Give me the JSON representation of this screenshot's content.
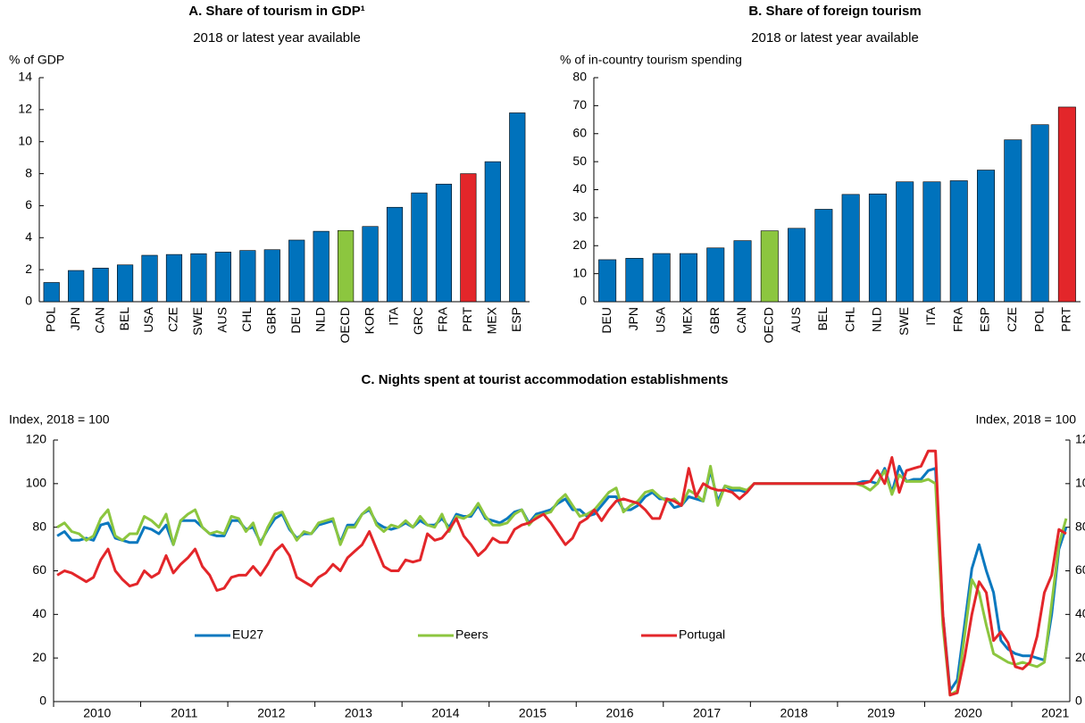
{
  "chart_data": [
    {
      "type": "bar",
      "title": "A. Share of tourism in GDP¹",
      "subtitle": "2018 or latest year available",
      "y_label": "% of GDP",
      "categories": [
        "POL",
        "JPN",
        "CAN",
        "BEL",
        "USA",
        "CZE",
        "SWE",
        "AUS",
        "CHL",
        "GBR",
        "DEU",
        "NLD",
        "OECD",
        "KOR",
        "ITA",
        "GRC",
        "FRA",
        "PRT",
        "MEX",
        "ESP"
      ],
      "values": [
        1.2,
        1.95,
        2.1,
        2.3,
        2.9,
        2.95,
        3.0,
        3.1,
        3.2,
        3.25,
        3.85,
        4.4,
        4.45,
        4.7,
        5.9,
        6.8,
        7.35,
        8.0,
        8.75,
        11.8
      ],
      "colors": [
        "#0072bc",
        "#0072bc",
        "#0072bc",
        "#0072bc",
        "#0072bc",
        "#0072bc",
        "#0072bc",
        "#0072bc",
        "#0072bc",
        "#0072bc",
        "#0072bc",
        "#0072bc",
        "#8cc63f",
        "#0072bc",
        "#0072bc",
        "#0072bc",
        "#0072bc",
        "#e3262a",
        "#0072bc",
        "#0072bc"
      ],
      "ylim": [
        0,
        14
      ],
      "yticks": [
        0,
        2,
        4,
        6,
        8,
        10,
        12,
        14
      ]
    },
    {
      "type": "bar",
      "title": "B. Share of foreign tourism",
      "subtitle": "2018 or latest year available",
      "y_label": "% of in-country tourism spending",
      "categories": [
        "DEU",
        "JPN",
        "USA",
        "MEX",
        "GBR",
        "CAN",
        "OECD",
        "AUS",
        "BEL",
        "CHL",
        "NLD",
        "SWE",
        "ITA",
        "FRA",
        "ESP",
        "CZE",
        "POL",
        "PRT"
      ],
      "values": [
        15,
        15.5,
        17.2,
        17.2,
        19.2,
        21.8,
        25.3,
        26.2,
        33,
        38.3,
        38.5,
        42.8,
        42.8,
        43.2,
        47,
        57.8,
        63.2,
        69.5
      ],
      "colors": [
        "#0072bc",
        "#0072bc",
        "#0072bc",
        "#0072bc",
        "#0072bc",
        "#0072bc",
        "#8cc63f",
        "#0072bc",
        "#0072bc",
        "#0072bc",
        "#0072bc",
        "#0072bc",
        "#0072bc",
        "#0072bc",
        "#0072bc",
        "#0072bc",
        "#0072bc",
        "#e3262a"
      ],
      "ylim": [
        0,
        80
      ],
      "yticks": [
        0,
        10,
        20,
        30,
        40,
        50,
        60,
        70,
        80
      ]
    },
    {
      "type": "line",
      "title": "C. Nights spent at tourist accommodation establishments",
      "y_label": "Index, 2018 = 100",
      "y2_label": "Index, 2018 = 100",
      "categories": [
        null,
        null,
        null,
        null,
        null,
        null,
        "2010",
        null,
        null,
        null,
        null,
        null,
        null,
        null,
        null,
        null,
        null,
        null,
        "2011",
        null,
        null,
        null,
        null,
        null,
        null,
        null,
        null,
        null,
        null,
        null,
        "2012",
        null,
        null,
        null,
        null,
        null,
        null,
        null,
        null,
        null,
        null,
        null,
        "2013",
        null,
        null,
        null,
        null,
        null,
        null,
        null,
        null,
        null,
        null,
        null,
        "2014",
        null,
        null,
        null,
        null,
        null,
        null,
        null,
        null,
        null,
        null,
        null,
        "2015",
        null,
        null,
        null,
        null,
        null,
        null,
        null,
        null,
        null,
        null,
        null,
        "2016",
        null,
        null,
        null,
        null,
        null,
        null,
        null,
        null,
        null,
        null,
        null,
        "2017",
        null,
        null,
        null,
        null,
        null,
        null,
        null,
        null,
        null,
        null,
        null,
        "2018",
        null,
        null,
        null,
        null,
        null,
        null,
        null,
        null,
        null,
        null,
        null,
        "2019",
        null,
        null,
        null,
        null,
        null,
        null,
        null,
        null,
        null,
        null,
        null,
        "2020",
        null,
        null,
        null,
        null,
        null,
        null,
        null,
        null,
        null,
        null,
        null,
        "2021",
        null
      ],
      "series": [
        {
          "name": "EU27",
          "color": "#0b78bf",
          "values": [
            76,
            78,
            74,
            74,
            75,
            74,
            81,
            82,
            75,
            74,
            73,
            73,
            80,
            79,
            77,
            81,
            72,
            83,
            83,
            83,
            80,
            77,
            76,
            76,
            83,
            83,
            79,
            80,
            73,
            79,
            84,
            86,
            79,
            75,
            77,
            77,
            81,
            82,
            83,
            73,
            81,
            81,
            86,
            88,
            82,
            80,
            79,
            80,
            82,
            80,
            83,
            81,
            81,
            84,
            80,
            86,
            85,
            85,
            90,
            84,
            83,
            82,
            84,
            87,
            88,
            82,
            86,
            87,
            88,
            91,
            93,
            88,
            88,
            85,
            86,
            90,
            94,
            94,
            88,
            88,
            90,
            94,
            96,
            93,
            93,
            89,
            90,
            94,
            93,
            92,
            106,
            92,
            99,
            97,
            97,
            96,
            100,
            100,
            100,
            100,
            100,
            100,
            100,
            100,
            100,
            100,
            100,
            100,
            100,
            100,
            100,
            101,
            101,
            100,
            107,
            96,
            108,
            101,
            102,
            102,
            106,
            107,
            40,
            5,
            10,
            35,
            61,
            72,
            60,
            50,
            28,
            24,
            22,
            21,
            21,
            20,
            19,
            40,
            70,
            80
          ]
        },
        {
          "name": "Peers",
          "color": "#8cc63f",
          "values": [
            80,
            82,
            78,
            77,
            74,
            76,
            84,
            88,
            76,
            74,
            77,
            77,
            85,
            83,
            80,
            86,
            72,
            83,
            86,
            88,
            80,
            77,
            78,
            77,
            85,
            84,
            78,
            82,
            72,
            80,
            86,
            87,
            80,
            74,
            78,
            77,
            82,
            83,
            84,
            72,
            80,
            80,
            86,
            89,
            81,
            78,
            81,
            80,
            83,
            80,
            85,
            81,
            80,
            86,
            78,
            85,
            84,
            86,
            91,
            85,
            81,
            81,
            82,
            86,
            88,
            81,
            85,
            86,
            87,
            92,
            95,
            90,
            85,
            86,
            88,
            92,
            96,
            98,
            87,
            90,
            92,
            96,
            97,
            94,
            92,
            93,
            90,
            97,
            95,
            92,
            108,
            90,
            99,
            98,
            98,
            97,
            100,
            100,
            100,
            100,
            100,
            100,
            100,
            100,
            100,
            100,
            100,
            100,
            100,
            100,
            100,
            99,
            97,
            100,
            106,
            95,
            104,
            101,
            101,
            101,
            102,
            100,
            35,
            3,
            5,
            30,
            56,
            50,
            35,
            22,
            20,
            18,
            17,
            18,
            17,
            16,
            18,
            45,
            72,
            84
          ]
        },
        {
          "name": "Portugal",
          "color": "#e3262a",
          "values": [
            58,
            60,
            59,
            57,
            55,
            57,
            65,
            70,
            60,
            56,
            53,
            54,
            60,
            57,
            59,
            67,
            59,
            63,
            66,
            70,
            62,
            58,
            51,
            52,
            57,
            58,
            58,
            62,
            58,
            63,
            69,
            72,
            67,
            57,
            55,
            53,
            57,
            59,
            63,
            60,
            66,
            69,
            72,
            78,
            70,
            62,
            60,
            60,
            65,
            64,
            65,
            77,
            74,
            75,
            79,
            84,
            76,
            72,
            67,
            70,
            75,
            73,
            73,
            79,
            81,
            82,
            84,
            86,
            82,
            77,
            72,
            75,
            82,
            84,
            88,
            83,
            88,
            92,
            93,
            92,
            91,
            88,
            84,
            84,
            93,
            92,
            90,
            107,
            94,
            100,
            98,
            97,
            97,
            96,
            93,
            96,
            100,
            100,
            100,
            100,
            100,
            100,
            100,
            100,
            100,
            100,
            100,
            100,
            100,
            100,
            100,
            100,
            101,
            106,
            100,
            112,
            96,
            106,
            107,
            108,
            115,
            115,
            40,
            3,
            4,
            20,
            40,
            55,
            50,
            28,
            32,
            27,
            16,
            15,
            18,
            30,
            50,
            58,
            79,
            77
          ]
        }
      ],
      "ylim": [
        0,
        120
      ],
      "yticks": [
        0,
        20,
        40,
        60,
        80,
        100,
        120
      ],
      "y2lim": [
        0,
        120
      ],
      "y2ticks": [
        0,
        20,
        40,
        60,
        80,
        100,
        120
      ],
      "legend": "lower left"
    }
  ]
}
